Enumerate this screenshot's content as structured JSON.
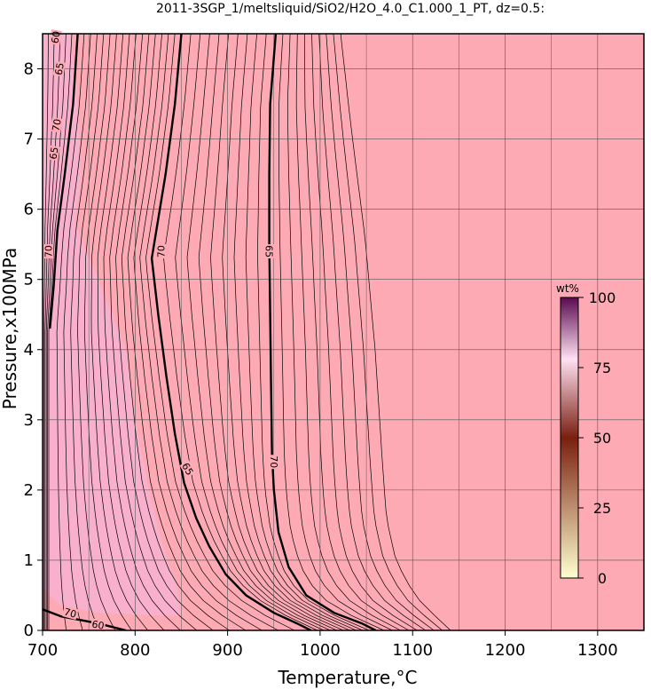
{
  "chart_data": {
    "type": "contour",
    "title": "2011-3SGP_1/meltsliquid/SiO2/H2O_4.0_C1.000_1_PT, dz=0.5:",
    "xlabel": "Temperature,°C",
    "ylabel": "Pressure,x100MPa",
    "xlim": [
      700,
      1350
    ],
    "ylim": [
      0,
      8.5
    ],
    "x_ticks": [
      700,
      800,
      900,
      1000,
      1100,
      1200,
      1300
    ],
    "y_ticks": [
      0,
      1,
      2,
      3,
      4,
      5,
      6,
      7,
      8
    ],
    "grid": true,
    "colorbar": {
      "unit": "wt%",
      "range": [
        0,
        100
      ],
      "ticks": [
        0,
        25,
        50,
        75,
        100
      ],
      "colors": [
        "#ffffd0",
        "#7a1f10",
        "#ffe0f2",
        "#5a0a50"
      ]
    },
    "background_color": "#fdaab4",
    "labeled_contours": [
      {
        "value": 70,
        "label": "70",
        "points": [
          [
            738,
            8.5
          ],
          [
            733,
            7.5
          ],
          [
            724,
            6.5
          ],
          [
            716,
            5.7
          ],
          [
            712,
            4.9
          ],
          [
            708,
            4.3
          ]
        ]
      },
      {
        "value": 70,
        "label": "70",
        "points": [
          [
            850,
            8.5
          ],
          [
            843,
            7.5
          ],
          [
            833,
            6.5
          ],
          [
            823,
            5.7
          ],
          [
            818,
            5.3
          ],
          [
            825,
            4.5
          ],
          [
            834,
            3.6
          ],
          [
            843,
            2.8
          ],
          [
            853,
            2.1
          ],
          [
            866,
            1.6
          ],
          [
            880,
            1.2
          ],
          [
            898,
            0.8
          ],
          [
            920,
            0.5
          ],
          [
            950,
            0.25
          ],
          [
            975,
            0.1
          ],
          [
            990,
            0
          ]
        ]
      },
      {
        "value": 65,
        "label": "65",
        "points": [
          [
            952,
            8.5
          ],
          [
            946,
            7.5
          ],
          [
            945,
            6.5
          ],
          [
            945,
            5.5
          ],
          [
            946,
            4.5
          ],
          [
            947,
            3.5
          ],
          [
            948,
            2.5
          ],
          [
            950,
            2.0
          ],
          [
            955,
            1.4
          ],
          [
            966,
            0.9
          ],
          [
            985,
            0.5
          ],
          [
            1015,
            0.25
          ],
          [
            1045,
            0.1
          ],
          [
            1060,
            0
          ]
        ]
      },
      {
        "value": 70,
        "label": "70",
        "points": [
          [
            700,
            0.3
          ],
          [
            720,
            0.2
          ],
          [
            760,
            0.1
          ],
          [
            790,
            0
          ]
        ]
      }
    ],
    "contour_labels_printed": [
      "70",
      "70",
      "65",
      "65",
      "70",
      "70",
      "65",
      "65",
      "60",
      "70",
      "60"
    ]
  }
}
